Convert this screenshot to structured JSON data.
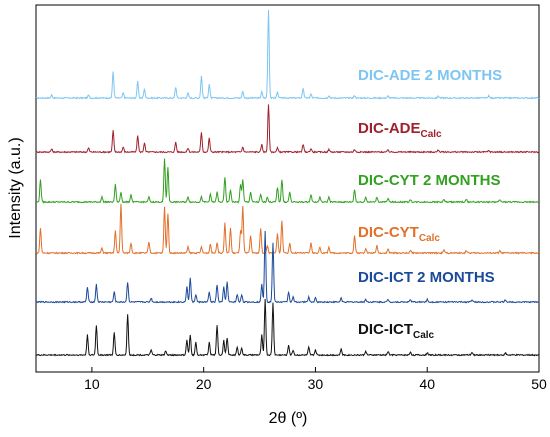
{
  "chart_data": {
    "type": "line",
    "xlabel": "2θ (º)",
    "ylabel": "Intensity (a.u.)",
    "xlim": [
      5,
      50
    ],
    "x_ticks": [
      10,
      20,
      30,
      40,
      50
    ],
    "y_ticks_shown": false,
    "grid": false,
    "series": [
      {
        "name": "DIC-ADE 2 MONTHS",
        "label_main": "DIC-ADE 2 MONTHS",
        "label_sub": "",
        "color": "#7ec6f0",
        "label_color": "#7ec6f0",
        "peaks": [
          [
            6.4,
            0.6
          ],
          [
            9.7,
            0.6
          ],
          [
            11.9,
            5.3
          ],
          [
            12.8,
            1.0
          ],
          [
            14.1,
            3.3
          ],
          [
            14.7,
            1.8
          ],
          [
            17.5,
            2.2
          ],
          [
            18.6,
            1.0
          ],
          [
            19.8,
            4.4
          ],
          [
            20.5,
            2.8
          ],
          [
            23.5,
            1.4
          ],
          [
            25.2,
            1.2
          ],
          [
            25.8,
            17.7
          ],
          [
            26.6,
            1.2
          ],
          [
            28.9,
            2.0
          ],
          [
            29.6,
            0.8
          ],
          [
            31.2,
            0.5
          ],
          [
            33.5,
            0.5
          ],
          [
            36.5,
            0.4
          ],
          [
            41.0,
            0.4
          ],
          [
            45.5,
            0.4
          ]
        ]
      },
      {
        "name": "DIC-ADE Calc",
        "label_main": "DIC-ADE",
        "label_sub": "Calc",
        "color": "#a0202c",
        "label_color": "#a0202c",
        "peaks": [
          [
            6.4,
            0.6
          ],
          [
            9.7,
            0.8
          ],
          [
            11.9,
            4.3
          ],
          [
            12.8,
            1.0
          ],
          [
            14.1,
            3.3
          ],
          [
            14.7,
            1.8
          ],
          [
            17.5,
            2.0
          ],
          [
            18.6,
            0.8
          ],
          [
            19.8,
            4.0
          ],
          [
            20.5,
            2.8
          ],
          [
            23.5,
            1.0
          ],
          [
            25.2,
            1.5
          ],
          [
            25.8,
            9.5
          ],
          [
            26.6,
            0.8
          ],
          [
            28.9,
            1.5
          ],
          [
            29.6,
            0.7
          ],
          [
            31.2,
            0.5
          ],
          [
            33.5,
            0.5
          ],
          [
            36.5,
            0.4
          ],
          [
            41.0,
            0.4
          ],
          [
            45.5,
            0.3
          ]
        ]
      },
      {
        "name": "DIC-CYT 2 MONTHS",
        "label_main": "DIC-CYT 2 MONTHS",
        "label_sub": "",
        "color": "#32a020",
        "label_color": "#32a020",
        "peaks": [
          [
            5.4,
            4.5
          ],
          [
            10.9,
            1.0
          ],
          [
            12.1,
            3.5
          ],
          [
            12.6,
            2.0
          ],
          [
            13.5,
            1.5
          ],
          [
            15.1,
            1.0
          ],
          [
            16.5,
            8.7
          ],
          [
            16.8,
            7.0
          ],
          [
            18.6,
            1.0
          ],
          [
            19.8,
            1.0
          ],
          [
            20.6,
            1.5
          ],
          [
            21.2,
            2.0
          ],
          [
            21.9,
            5.0
          ],
          [
            22.4,
            2.5
          ],
          [
            23.3,
            3.5
          ],
          [
            23.5,
            4.5
          ],
          [
            24.2,
            2.0
          ],
          [
            25.1,
            1.5
          ],
          [
            25.7,
            1.0
          ],
          [
            26.6,
            3.0
          ],
          [
            27.0,
            4.5
          ],
          [
            27.7,
            2.0
          ],
          [
            29.6,
            1.5
          ],
          [
            30.4,
            1.0
          ],
          [
            31.2,
            1.0
          ],
          [
            33.5,
            2.5
          ],
          [
            34.5,
            1.0
          ],
          [
            35.5,
            1.0
          ],
          [
            36.5,
            0.7
          ],
          [
            38.5,
            0.5
          ],
          [
            41.5,
            0.5
          ],
          [
            43.5,
            0.5
          ],
          [
            46.5,
            0.4
          ]
        ]
      },
      {
        "name": "DIC-CYT Calc",
        "label_main": "DIC-CYT",
        "label_sub": "Calc",
        "color": "#e0702a",
        "label_color": "#e0702a",
        "peaks": [
          [
            5.4,
            5.0
          ],
          [
            10.9,
            1.0
          ],
          [
            12.1,
            4.5
          ],
          [
            12.6,
            9.8
          ],
          [
            13.5,
            2.0
          ],
          [
            15.1,
            2.2
          ],
          [
            16.5,
            9.2
          ],
          [
            16.8,
            8.0
          ],
          [
            18.6,
            1.2
          ],
          [
            19.8,
            1.2
          ],
          [
            20.6,
            1.8
          ],
          [
            21.2,
            2.2
          ],
          [
            21.9,
            6.0
          ],
          [
            22.4,
            5.0
          ],
          [
            23.3,
            4.5
          ],
          [
            23.5,
            9.3
          ],
          [
            24.2,
            3.5
          ],
          [
            25.1,
            5.0
          ],
          [
            25.7,
            1.5
          ],
          [
            26.6,
            4.0
          ],
          [
            27.0,
            6.5
          ],
          [
            27.7,
            2.0
          ],
          [
            29.6,
            2.0
          ],
          [
            30.4,
            1.2
          ],
          [
            31.2,
            1.2
          ],
          [
            33.5,
            3.5
          ],
          [
            34.5,
            1.0
          ],
          [
            35.5,
            1.5
          ],
          [
            36.5,
            0.8
          ],
          [
            38.5,
            0.6
          ],
          [
            41.5,
            0.6
          ],
          [
            43.5,
            0.5
          ],
          [
            46.5,
            0.4
          ]
        ]
      },
      {
        "name": "DIC-ICT 2 MONTHS",
        "label_main": "DIC-ICT 2 MONTHS",
        "label_sub": "",
        "color": "#1a4a9a",
        "label_color": "#1a4a9a",
        "peaks": [
          [
            9.6,
            3.0
          ],
          [
            10.4,
            3.5
          ],
          [
            12.0,
            2.0
          ],
          [
            13.2,
            4.0
          ],
          [
            15.3,
            0.8
          ],
          [
            18.5,
            3.0
          ],
          [
            18.8,
            4.8
          ],
          [
            19.3,
            1.5
          ],
          [
            20.5,
            2.0
          ],
          [
            21.2,
            3.5
          ],
          [
            21.8,
            3.0
          ],
          [
            22.1,
            4.0
          ],
          [
            23.0,
            1.5
          ],
          [
            23.4,
            1.5
          ],
          [
            25.2,
            3.5
          ],
          [
            25.5,
            14.3
          ],
          [
            26.2,
            11.8
          ],
          [
            27.6,
            2.0
          ],
          [
            28.0,
            1.0
          ],
          [
            29.4,
            1.0
          ],
          [
            30.0,
            0.8
          ],
          [
            32.3,
            0.8
          ],
          [
            34.5,
            0.5
          ],
          [
            36.5,
            0.5
          ],
          [
            38.5,
            0.5
          ],
          [
            40.0,
            0.5
          ],
          [
            44.0,
            0.4
          ],
          [
            47.0,
            0.4
          ]
        ]
      },
      {
        "name": "DIC-ICT Calc",
        "label_main": "DIC-ICT",
        "label_sub": "Calc",
        "color": "#111111",
        "label_color": "#111111",
        "peaks": [
          [
            9.6,
            4.0
          ],
          [
            10.4,
            6.0
          ],
          [
            12.0,
            4.5
          ],
          [
            13.2,
            8.2
          ],
          [
            15.3,
            1.0
          ],
          [
            16.6,
            0.8
          ],
          [
            18.5,
            3.0
          ],
          [
            18.8,
            4.0
          ],
          [
            19.3,
            2.5
          ],
          [
            20.5,
            2.5
          ],
          [
            21.2,
            6.0
          ],
          [
            21.8,
            3.0
          ],
          [
            22.1,
            3.5
          ],
          [
            23.0,
            1.5
          ],
          [
            23.4,
            1.5
          ],
          [
            25.2,
            4.0
          ],
          [
            25.5,
            11.2
          ],
          [
            26.2,
            10.4
          ],
          [
            27.6,
            2.0
          ],
          [
            28.0,
            1.0
          ],
          [
            29.4,
            1.5
          ],
          [
            30.0,
            1.0
          ],
          [
            32.3,
            1.2
          ],
          [
            34.5,
            0.8
          ],
          [
            36.5,
            0.7
          ],
          [
            38.5,
            0.6
          ],
          [
            40.0,
            0.5
          ],
          [
            44.0,
            0.5
          ],
          [
            47.0,
            0.4
          ]
        ]
      }
    ]
  }
}
